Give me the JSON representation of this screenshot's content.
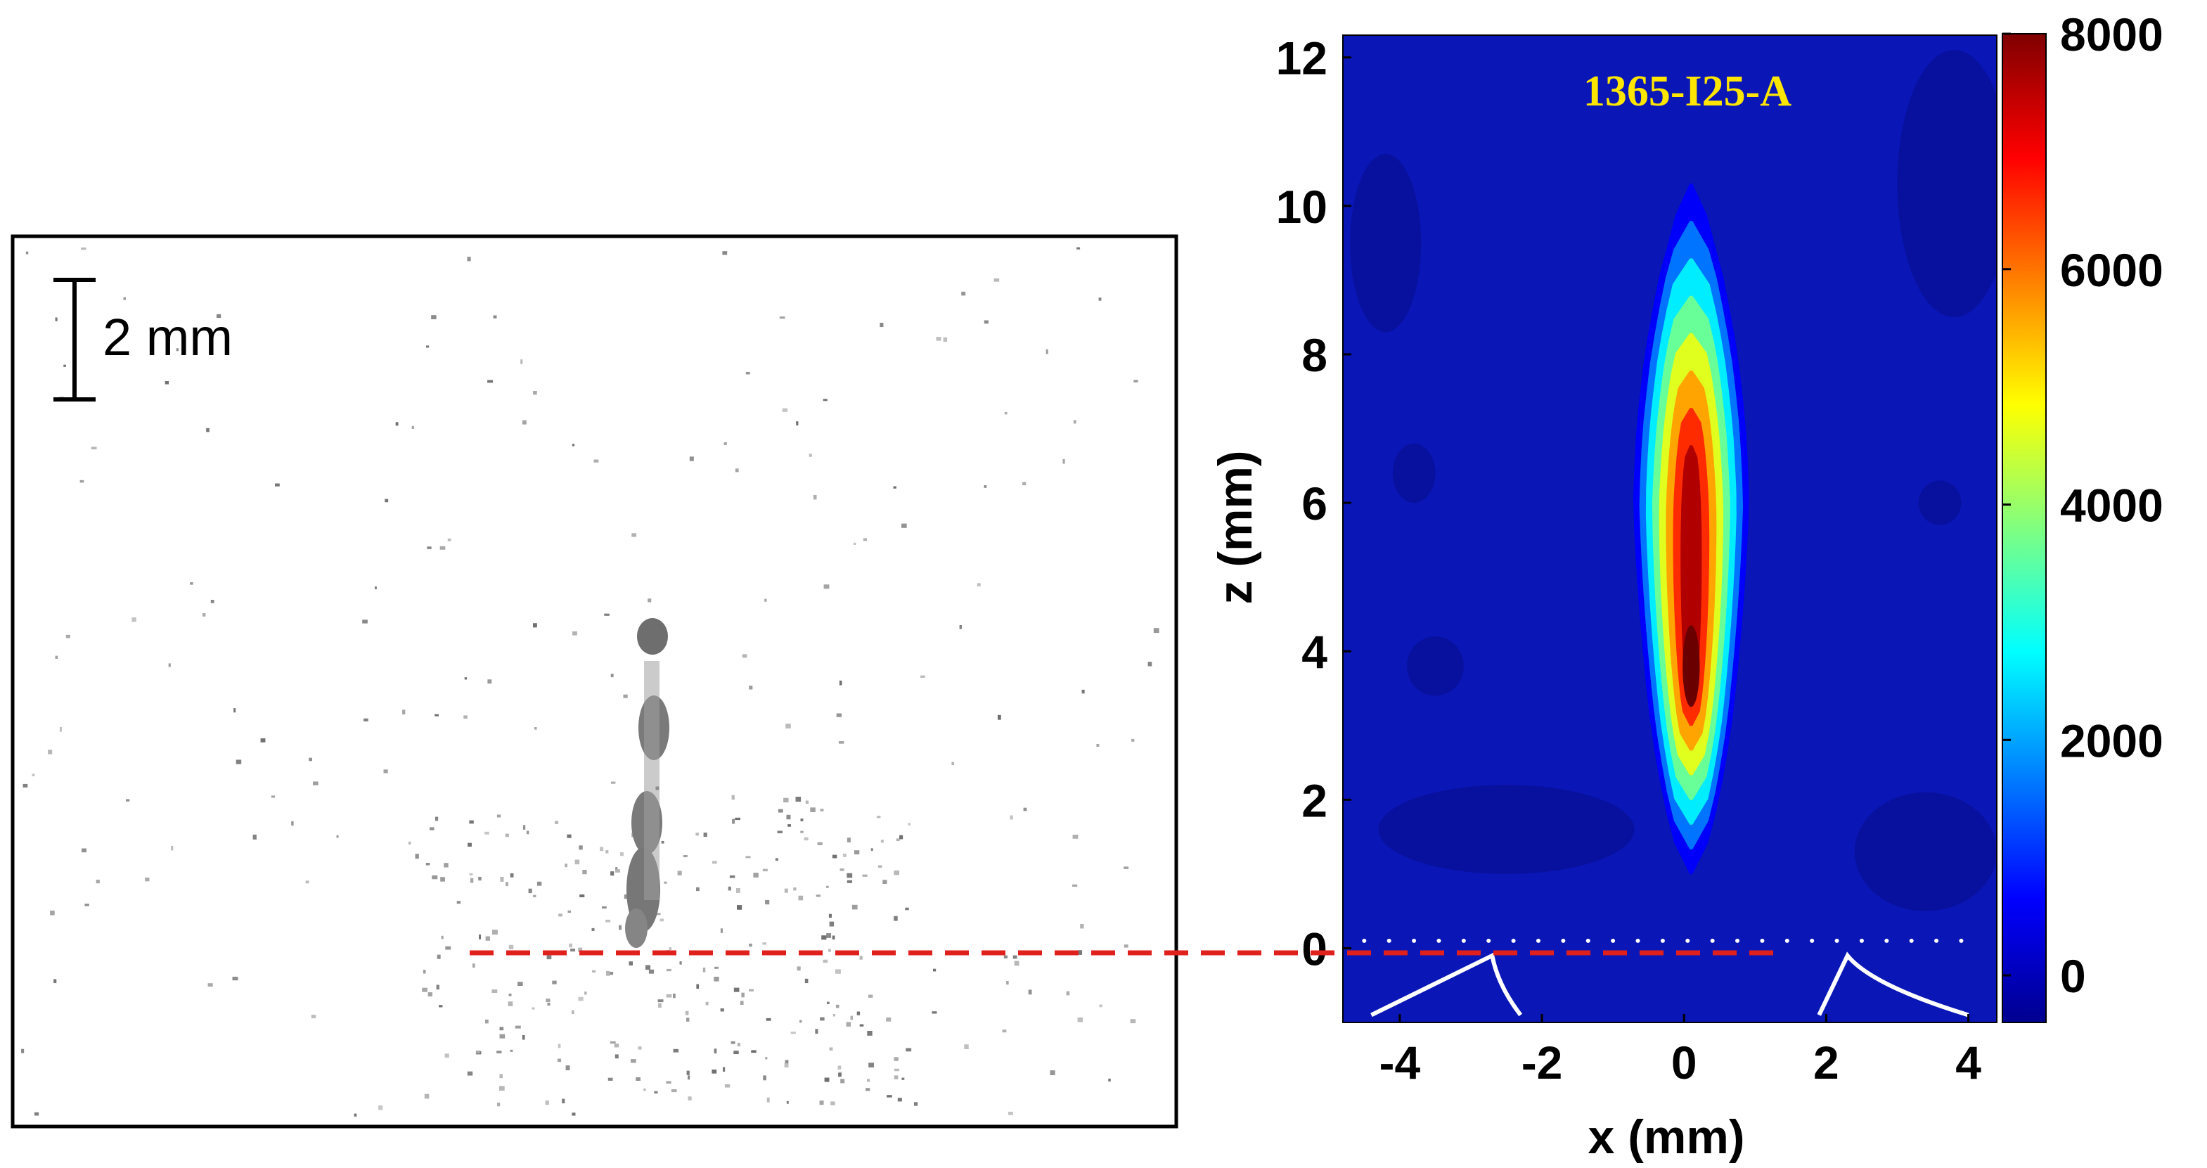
{
  "left_panel": {
    "type": "photograph",
    "scale_bar_label": "2 mm"
  },
  "colors": {
    "reference_line": "#e0201c",
    "annotation_title": "#ffe600",
    "nozzle_outline": "#ffffff",
    "zero_dots": "#ffffff",
    "colormap": [
      "#00008f",
      "#0000ff",
      "#0080ff",
      "#00ffff",
      "#80ff80",
      "#ffff00",
      "#ff8000",
      "#ff0000",
      "#800000"
    ]
  },
  "chart_data": {
    "type": "heatmap",
    "title": "",
    "annotation": "1365-I25-A",
    "xlabel": "x (mm)",
    "ylabel": "z (mm)",
    "xlim": [
      -4.8,
      4.4
    ],
    "ylim": [
      -1,
      12.3
    ],
    "xticks": [
      -4,
      -2,
      0,
      2,
      4
    ],
    "yticks": [
      0,
      2,
      4,
      6,
      8,
      10,
      12
    ],
    "colorbar": {
      "min": -400,
      "max": 8000,
      "ticks": [
        0,
        2000,
        4000,
        6000,
        8000
      ]
    },
    "levels": [
      0,
      1000,
      2000,
      3000,
      4000,
      5000,
      6000,
      7000
    ],
    "plume_profile": {
      "z": [
        1,
        2,
        3,
        4,
        5,
        6,
        7,
        8,
        9,
        10.3
      ],
      "half_width_mm": [
        0.35,
        0.55,
        0.65,
        0.7,
        0.75,
        0.8,
        0.78,
        0.72,
        0.6,
        0.3
      ],
      "center_x_mm": 0.1,
      "peak_value": 8000,
      "peak_z_mm": 3.8
    },
    "nozzle_outline": [
      {
        "x": [
          -4.4,
          -2.7,
          -2.3
        ],
        "z": [
          -0.9,
          -0.1,
          -0.9
        ]
      },
      {
        "x": [
          1.9,
          2.3,
          4.0
        ],
        "z": [
          -0.9,
          -0.1,
          -0.9
        ]
      }
    ]
  }
}
